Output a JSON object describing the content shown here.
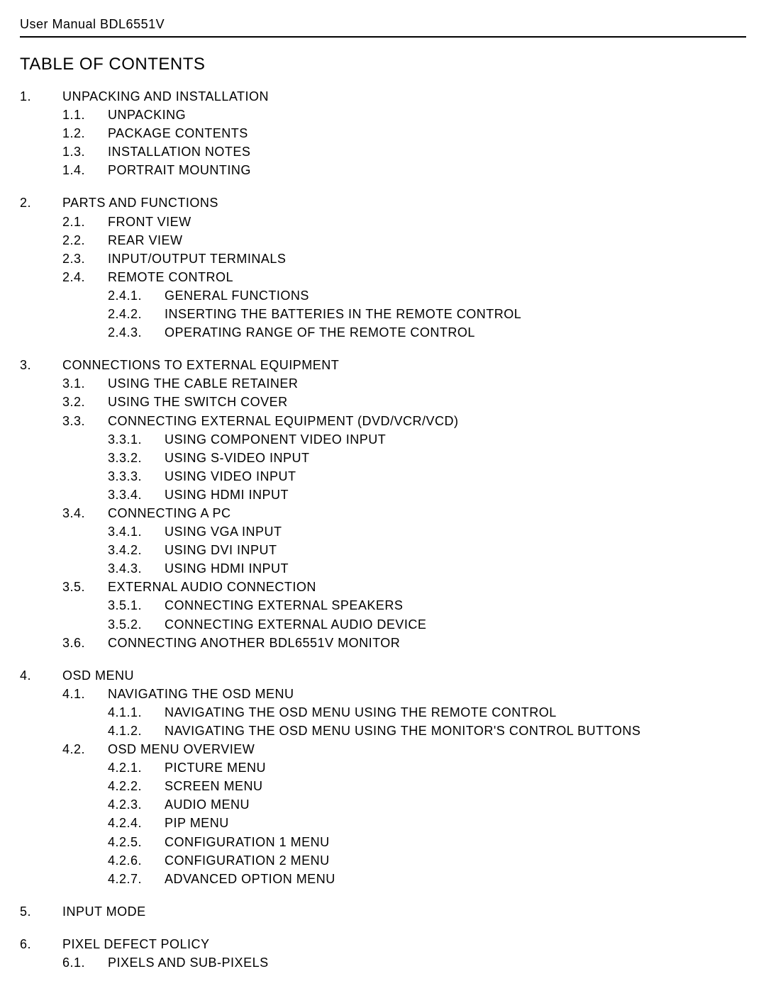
{
  "header": "User Manual BDL6551V",
  "toc_title": "TABLE OF CONTENTS",
  "sections": [
    {
      "num": "1.",
      "title": "UNPACKING AND INSTALLATION",
      "subs": [
        {
          "num": "1.1.",
          "title": "UNPACKING"
        },
        {
          "num": "1.2.",
          "title": "PACKAGE CONTENTS"
        },
        {
          "num": "1.3.",
          "title": "INSTALLATION NOTES"
        },
        {
          "num": "1.4.",
          "title": "PORTRAIT MOUNTING"
        }
      ]
    },
    {
      "num": "2.",
      "title": "PARTS AND FUNCTIONS",
      "subs": [
        {
          "num": "2.1.",
          "title": "FRONT VIEW"
        },
        {
          "num": "2.2.",
          "title": "REAR VIEW"
        },
        {
          "num": "2.3.",
          "title": "INPUT/OUTPUT TERMINALS"
        },
        {
          "num": "2.4.",
          "title": "REMOTE CONTROL",
          "subs": [
            {
              "num": "2.4.1.",
              "title": "GENERAL FUNCTIONS"
            },
            {
              "num": "2.4.2.",
              "title": "INSERTING THE BATTERIES IN THE REMOTE CONTROL"
            },
            {
              "num": "2.4.3.",
              "title": "OPERATING RANGE OF THE REMOTE CONTROL"
            }
          ]
        }
      ]
    },
    {
      "num": "3.",
      "title": "CONNECTIONS TO EXTERNAL EQUIPMENT",
      "subs": [
        {
          "num": "3.1.",
          "title": "USING THE CABLE RETAINER"
        },
        {
          "num": "3.2.",
          "title": "USING THE SWITCH COVER"
        },
        {
          "num": "3.3.",
          "title": "CONNECTING EXTERNAL EQUIPMENT (DVD/VCR/VCD)",
          "subs": [
            {
              "num": "3.3.1.",
              "title": "USING COMPONENT VIDEO INPUT"
            },
            {
              "num": "3.3.2.",
              "title": "USING S-VIDEO INPUT"
            },
            {
              "num": "3.3.3.",
              "title": "USING VIDEO INPUT"
            },
            {
              "num": "3.3.4.",
              "title": "USING HDMI INPUT"
            }
          ]
        },
        {
          "num": "3.4.",
          "title": "CONNECTING A PC",
          "subs": [
            {
              "num": "3.4.1.",
              "title": "USING VGA INPUT"
            },
            {
              "num": "3.4.2.",
              "title": "USING DVI INPUT"
            },
            {
              "num": "3.4.3.",
              "title": "USING HDMI INPUT"
            }
          ]
        },
        {
          "num": "3.5.",
          "title": "EXTERNAL AUDIO CONNECTION",
          "subs": [
            {
              "num": "3.5.1.",
              "title": "CONNECTING EXTERNAL SPEAKERS"
            },
            {
              "num": "3.5.2.",
              "title": "CONNECTING EXTERNAL AUDIO DEVICE"
            }
          ]
        },
        {
          "num": "3.6.",
          "title": "CONNECTING ANOTHER BDL6551V MONITOR"
        }
      ]
    },
    {
      "num": "4.",
      "title": "OSD MENU",
      "subs": [
        {
          "num": "4.1.",
          "title": "NAVIGATING THE OSD MENU",
          "subs": [
            {
              "num": "4.1.1.",
              "title": "NAVIGATING THE OSD MENU USING THE REMOTE CONTROL"
            },
            {
              "num": "4.1.2.",
              "title": "NAVIGATING THE OSD MENU USING THE MONITOR'S CONTROL BUTTONS"
            }
          ]
        },
        {
          "num": "4.2.",
          "title": "OSD MENU OVERVIEW",
          "subs": [
            {
              "num": "4.2.1.",
              "title": "PICTURE MENU"
            },
            {
              "num": "4.2.2.",
              "title": "SCREEN MENU"
            },
            {
              "num": "4.2.3.",
              "title": "AUDIO MENU"
            },
            {
              "num": "4.2.4.",
              "title": "PIP MENU"
            },
            {
              "num": "4.2.5.",
              "title": "CONFIGURATION 1 MENU"
            },
            {
              "num": "4.2.6.",
              "title": "CONFIGURATION 2 MENU"
            },
            {
              "num": "4.2.7.",
              "title": "ADVANCED OPTION MENU"
            }
          ]
        }
      ]
    },
    {
      "num": "5.",
      "title": "INPUT MODE",
      "subs": []
    },
    {
      "num": "6.",
      "title": "PIXEL DEFECT POLICY",
      "subs": [
        {
          "num": "6.1.",
          "title": "PIXELS AND SUB-PIXELS"
        }
      ]
    }
  ]
}
